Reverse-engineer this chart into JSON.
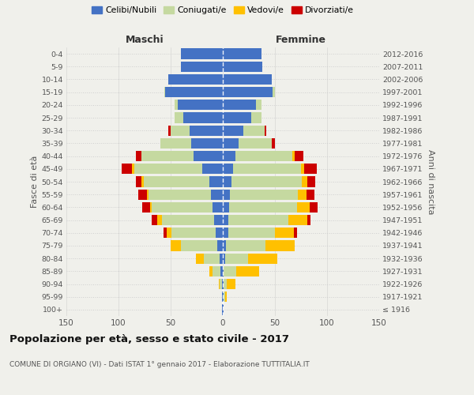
{
  "age_groups": [
    "100+",
    "95-99",
    "90-94",
    "85-89",
    "80-84",
    "75-79",
    "70-74",
    "65-69",
    "60-64",
    "55-59",
    "50-54",
    "45-49",
    "40-44",
    "35-39",
    "30-34",
    "25-29",
    "20-24",
    "15-19",
    "10-14",
    "5-9",
    "0-4"
  ],
  "birth_years": [
    "≤ 1916",
    "1917-1921",
    "1922-1926",
    "1927-1931",
    "1932-1936",
    "1937-1941",
    "1942-1946",
    "1947-1951",
    "1952-1956",
    "1957-1961",
    "1962-1966",
    "1967-1971",
    "1972-1976",
    "1977-1981",
    "1982-1986",
    "1987-1991",
    "1992-1996",
    "1997-2001",
    "2002-2006",
    "2007-2011",
    "2012-2016"
  ],
  "males": {
    "celibi": [
      1,
      1,
      1,
      2,
      3,
      5,
      7,
      8,
      10,
      11,
      13,
      20,
      28,
      30,
      32,
      38,
      43,
      55,
      52,
      40,
      40
    ],
    "coniugati": [
      0,
      0,
      2,
      8,
      15,
      35,
      42,
      50,
      58,
      60,
      63,
      65,
      50,
      30,
      18,
      8,
      3,
      1,
      0,
      0,
      0
    ],
    "vedovi": [
      0,
      0,
      1,
      3,
      8,
      10,
      5,
      5,
      2,
      2,
      2,
      2,
      0,
      0,
      0,
      0,
      0,
      0,
      0,
      0,
      0
    ],
    "divorziati": [
      0,
      0,
      0,
      0,
      0,
      0,
      3,
      5,
      7,
      8,
      5,
      10,
      5,
      0,
      2,
      0,
      0,
      0,
      0,
      0,
      0
    ]
  },
  "females": {
    "nubili": [
      1,
      1,
      1,
      1,
      2,
      3,
      5,
      5,
      6,
      7,
      8,
      10,
      12,
      15,
      20,
      27,
      32,
      48,
      47,
      38,
      37
    ],
    "coniugate": [
      0,
      1,
      3,
      12,
      22,
      38,
      45,
      58,
      65,
      65,
      68,
      65,
      55,
      32,
      20,
      10,
      5,
      2,
      0,
      0,
      0
    ],
    "vedove": [
      0,
      2,
      8,
      22,
      28,
      28,
      18,
      18,
      12,
      8,
      5,
      3,
      2,
      0,
      0,
      0,
      0,
      0,
      0,
      0,
      0
    ],
    "divorziate": [
      0,
      0,
      0,
      0,
      0,
      0,
      3,
      3,
      8,
      8,
      8,
      12,
      8,
      3,
      2,
      0,
      0,
      0,
      0,
      0,
      0
    ]
  },
  "colors": {
    "celibi": "#4472c4",
    "coniugati": "#c5d9a0",
    "vedovi": "#ffc000",
    "divorziati": "#cc0000"
  },
  "legend_labels": [
    "Celibi/Nubili",
    "Coniugati/e",
    "Vedovi/e",
    "Divorziati/e"
  ],
  "title": "Popolazione per età, sesso e stato civile - 2017",
  "subtitle": "COMUNE DI ORGIANO (VI) - Dati ISTAT 1° gennaio 2017 - Elaborazione TUTTITALIA.IT",
  "xlabel_left": "Maschi",
  "xlabel_right": "Femmine",
  "ylabel_left": "Fasce di età",
  "ylabel_right": "Anni di nascita",
  "xlim": 150,
  "bg_color": "#f0f0eb"
}
